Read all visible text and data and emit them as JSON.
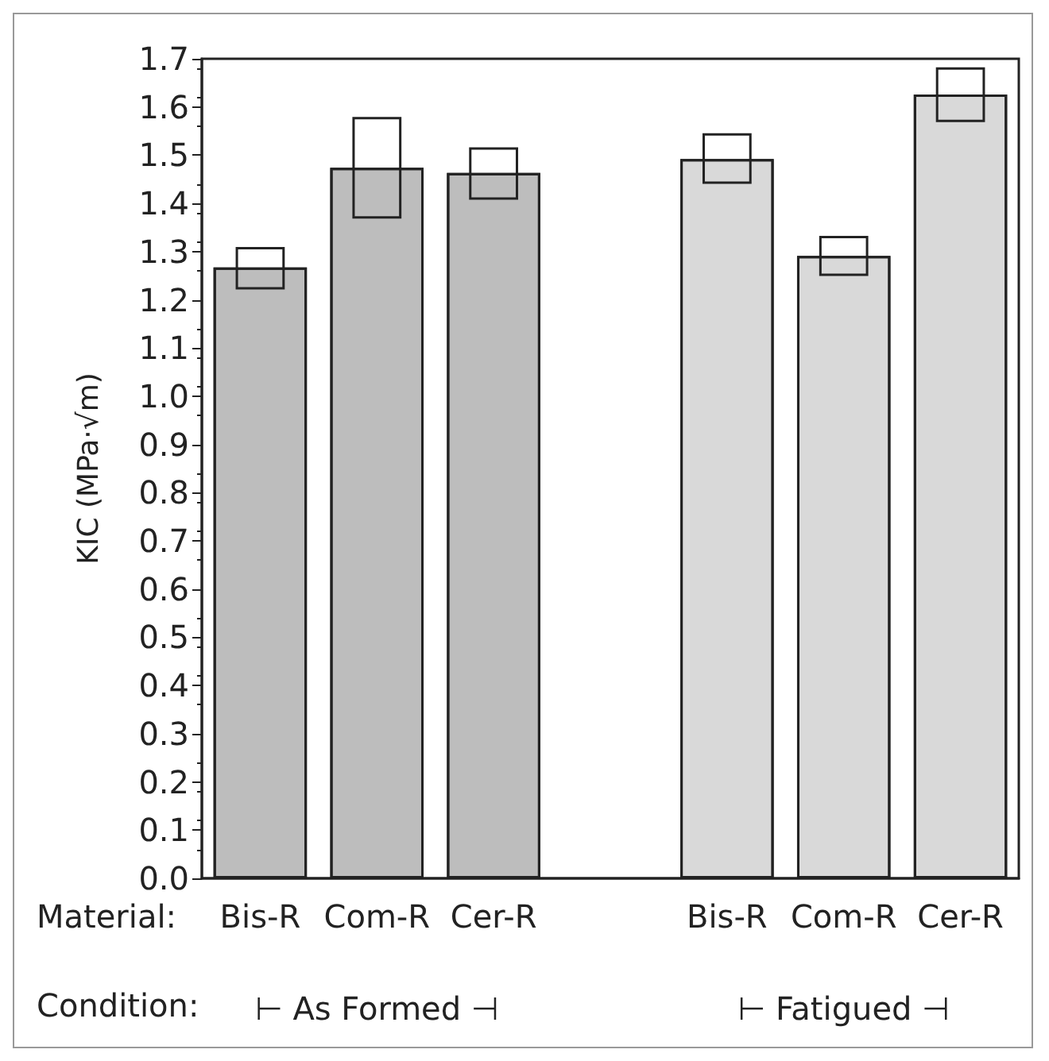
{
  "chart_data": {
    "type": "bar",
    "ylabel": "KIC (MPa·√m)",
    "categories": [
      "Bis-R",
      "Com-R",
      "Cer-R",
      null,
      "Bis-R",
      "Com-R",
      "Cer-R"
    ],
    "series": [
      {
        "values": [
          1.267,
          1.474,
          1.463,
          null,
          1.492,
          1.291,
          1.626
        ],
        "colors": [
          "#bdbdbd",
          "#bdbdbd",
          "#bdbdbd",
          "#d9d9d9",
          "#d9d9d9",
          "#d9d9d9",
          "#d9d9d9"
        ]
      },
      {
        "type": "bar",
        "color": "#222222",
        "base": [
          1.224,
          1.371,
          1.41,
          null,
          1.443,
          1.252,
          1.571
        ],
        "values": [
          0.083,
          0.206,
          0.104,
          null,
          0.1,
          0.078,
          0.109
        ]
      }
    ],
    "ylim": [
      0,
      1.7
    ],
    "yticks": [
      {
        "value": 0,
        "label": "0.0"
      },
      0.1,
      0.2,
      0.3,
      0.4,
      0.5,
      0.6,
      0.7,
      0.8,
      0.9,
      {
        "value": 1,
        "label": "1.0"
      },
      1.1,
      1.2,
      1.3,
      1.4,
      1.5,
      1.6,
      1.7
    ],
    "grid": false,
    "annotations": [
      "Material:",
      "Condition:",
      "⊢ As Formed ⊣",
      "⊢ Fatigued ⊣"
    ]
  }
}
